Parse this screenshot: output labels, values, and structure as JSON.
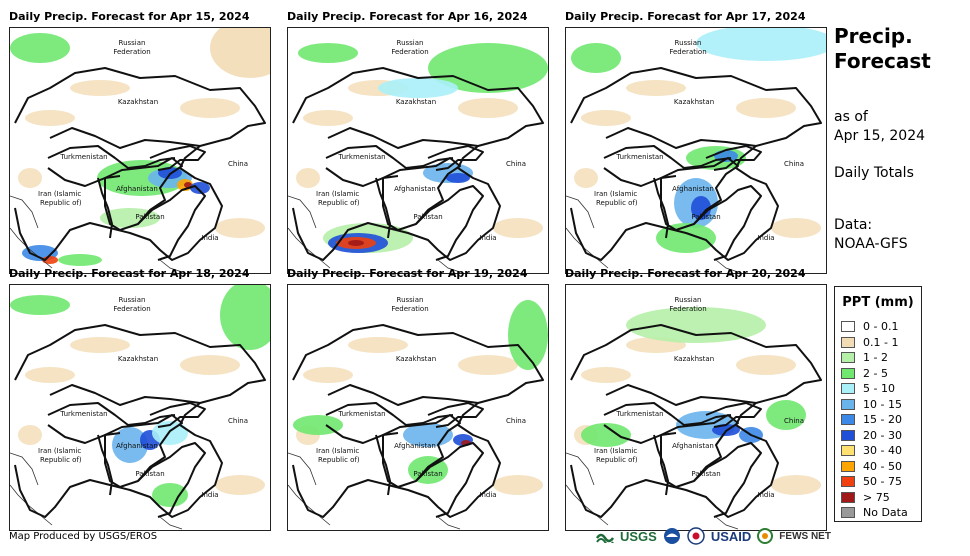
{
  "panels": [
    {
      "title": "Daily Precip. Forecast for Apr 15, 2024",
      "intensity": 1.0
    },
    {
      "title": "Daily Precip. Forecast for Apr 16, 2024",
      "intensity": 0.9
    },
    {
      "title": "Daily Precip. Forecast for Apr 17, 2024",
      "intensity": 0.6
    },
    {
      "title": "Daily Precip. Forecast for Apr 18, 2024",
      "intensity": 0.4
    },
    {
      "title": "Daily Precip. Forecast for Apr 19, 2024",
      "intensity": 0.5
    },
    {
      "title": "Daily Precip. Forecast for Apr 20, 2024",
      "intensity": 0.4
    }
  ],
  "map_labels": {
    "russia_1": "Russian",
    "russia_2": "Federation",
    "kazakhstan": "Kazakhstan",
    "turkmenistan": "Turkmenistan",
    "china": "China",
    "iran_1": "Iran  (Islamic",
    "iran_2": "Republic of)",
    "afghanistan": "Afghanistan",
    "pakistan": "Pakistan",
    "india": "India"
  },
  "heading": {
    "line1": "Precip.",
    "line2": "Forecast"
  },
  "as_of": {
    "line1": "as of",
    "line2": "Apr 15, 2024"
  },
  "totals": "Daily Totals",
  "data_source": {
    "line1": "Data:",
    "line2": "NOAA-GFS"
  },
  "legend": {
    "title": "PPT (mm)",
    "items": [
      {
        "label": "0 - 0.1",
        "color": "#ffffff"
      },
      {
        "label": "0.1 - 1",
        "color": "#f2dcb5"
      },
      {
        "label": "1 - 2",
        "color": "#b5f0a8"
      },
      {
        "label": "2 - 5",
        "color": "#70e870"
      },
      {
        "label": "5 - 10",
        "color": "#aaf0f8"
      },
      {
        "label": "10 - 15",
        "color": "#6ab4ec"
      },
      {
        "label": "15 - 20",
        "color": "#3c88e6"
      },
      {
        "label": "20 - 30",
        "color": "#1f4fd8"
      },
      {
        "label": "30 - 40",
        "color": "#ffe070"
      },
      {
        "label": "40 - 50",
        "color": "#ffa500"
      },
      {
        "label": "50 - 75",
        "color": "#f04010"
      },
      {
        "label": "> 75",
        "color": "#a01818"
      },
      {
        "label": "No Data",
        "color": "#999999"
      }
    ]
  },
  "credit": "Map Produced by USGS/EROS",
  "logos": {
    "usgs": "USGS",
    "usaid": "USAID",
    "fews": "FEWS NET"
  }
}
